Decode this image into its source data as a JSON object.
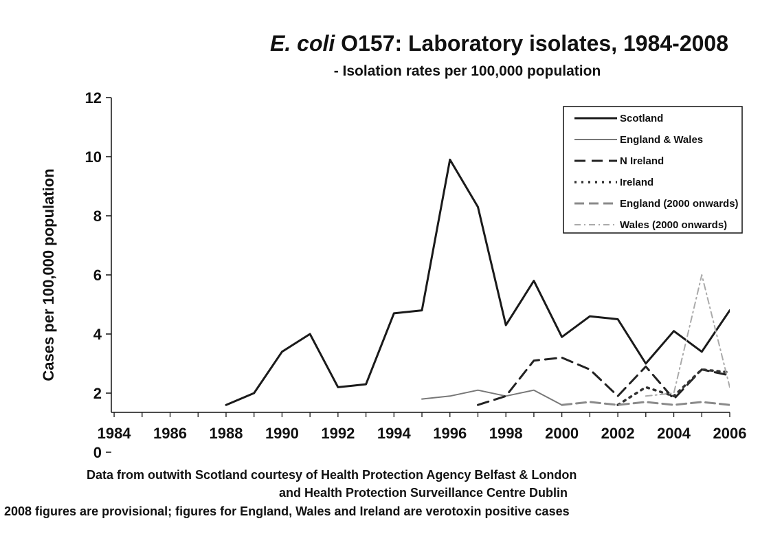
{
  "chart_data": {
    "type": "line",
    "title_italic": "E. coli",
    "title_rest": " O157: Laboratory isolates, 1984-2008",
    "subtitle": "- Isolation rates per 100,000 population",
    "ylabel": "Cases per 100,000 population",
    "xlabel": "",
    "x": [
      1984,
      1985,
      1986,
      1987,
      1988,
      1989,
      1990,
      1991,
      1992,
      1993,
      1994,
      1995,
      1996,
      1997,
      1998,
      1999,
      2000,
      2001,
      2002,
      2003,
      2004,
      2005,
      2006
    ],
    "x_tick_labels": [
      "1984",
      "1986",
      "1988",
      "1990",
      "1992",
      "1994",
      "1996",
      "1998",
      "2000",
      "2002",
      "2004",
      "2006"
    ],
    "y_ticks": [
      0,
      2,
      4,
      6,
      8,
      10,
      12
    ],
    "y_tick_labels": [
      "0",
      "2",
      "4",
      "6",
      "8",
      "10",
      "12"
    ],
    "xlim": [
      1983.9,
      2006
    ],
    "ylim": [
      0,
      12
    ],
    "legend_position": "top-right",
    "grid": false,
    "series": [
      {
        "name": "Scotland",
        "style": "solid-thick",
        "color": "#1a1a1a",
        "points": [
          [
            1988,
            1.6
          ],
          [
            1989,
            2.0
          ],
          [
            1990,
            3.4
          ],
          [
            1991,
            4.0
          ],
          [
            1992,
            2.2
          ],
          [
            1993,
            2.3
          ],
          [
            1994,
            4.7
          ],
          [
            1995,
            4.8
          ],
          [
            1996,
            9.9
          ],
          [
            1997,
            8.3
          ],
          [
            1998,
            4.3
          ],
          [
            1999,
            5.8
          ],
          [
            2000,
            3.9
          ],
          [
            2001,
            4.6
          ],
          [
            2002,
            4.5
          ],
          [
            2003,
            3.0
          ],
          [
            2004,
            4.1
          ],
          [
            2005,
            3.4
          ],
          [
            2006,
            4.8
          ]
        ]
      },
      {
        "name": "England & Wales",
        "style": "solid-thin",
        "color": "#777777",
        "points": [
          [
            1995,
            1.8
          ],
          [
            1996,
            1.9
          ],
          [
            1997,
            2.1
          ],
          [
            1998,
            1.9
          ],
          [
            1999,
            2.1
          ],
          [
            2000,
            1.6
          ]
        ]
      },
      {
        "name": "N Ireland",
        "style": "long-dash",
        "color": "#222222",
        "points": [
          [
            1997,
            1.6
          ],
          [
            1998,
            1.9
          ],
          [
            1999,
            3.1
          ],
          [
            2000,
            3.2
          ],
          [
            2001,
            2.8
          ],
          [
            2002,
            1.9
          ],
          [
            2003,
            2.9
          ],
          [
            2004,
            1.8
          ],
          [
            2005,
            2.8
          ],
          [
            2006,
            2.6
          ]
        ]
      },
      {
        "name": "Ireland",
        "style": "dotted",
        "color": "#333333",
        "points": [
          [
            2002,
            1.6
          ],
          [
            2003,
            2.2
          ],
          [
            2004,
            1.9
          ],
          [
            2005,
            2.8
          ],
          [
            2006,
            2.7
          ]
        ]
      },
      {
        "name": "England (2000 onwards)",
        "style": "dash-grey",
        "color": "#8a8a8a",
        "points": [
          [
            2000,
            1.6
          ],
          [
            2001,
            1.7
          ],
          [
            2002,
            1.6
          ],
          [
            2003,
            1.7
          ],
          [
            2004,
            1.6
          ],
          [
            2005,
            1.7
          ],
          [
            2006,
            1.6
          ]
        ]
      },
      {
        "name": "Wales (2000 onwards)",
        "style": "dash-dot-light",
        "color": "#aaaaaa",
        "points": [
          [
            2003,
            1.9
          ],
          [
            2004,
            2.0
          ],
          [
            2005,
            6.0
          ],
          [
            2006,
            2.2
          ]
        ]
      }
    ],
    "notes": [
      "Data from outwith Scotland courtesy of Health Protection Agency Belfast & London",
      "and Health Protection Surveillance Centre Dublin",
      "2008 figures are provisional; figures for England, Wales and Ireland are verotoxin positive cases"
    ]
  }
}
